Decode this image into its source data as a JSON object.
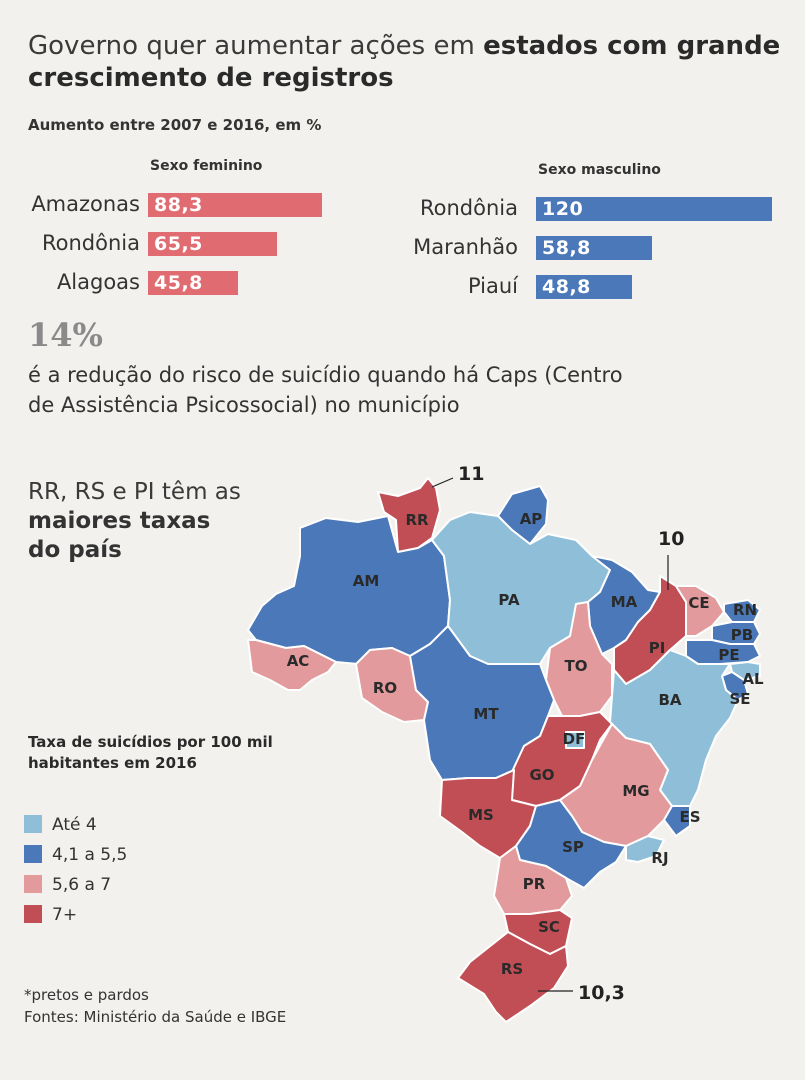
{
  "headline": {
    "part1": "Governo quer aumentar ações em ",
    "bold": "estados com grande crescimento de registros"
  },
  "subtitle": "Aumento entre 2007 e 2016, em %",
  "bar_section": {
    "female_header": "Sexo feminino",
    "male_header": "Sexo masculino"
  },
  "stat": {
    "value": "14%",
    "text": "é a redução do risco de suicídio quando há Caps (Centro de Assistência Psicossocial) no município"
  },
  "map_title": {
    "line1": "RR, RS e PI têm as",
    "line2": "maiores taxas",
    "line3": "do país"
  },
  "legend": {
    "title_line1": "Taxa de suicídios por 100 mil",
    "title_line2": "habitantes em 2016",
    "items": [
      {
        "label": "Até 4",
        "color": "#8fbfd8"
      },
      {
        "label": "4,1 a 5,5",
        "color": "#4a78b8"
      },
      {
        "label": "5,6 a 7",
        "color": "#e29a9c"
      },
      {
        "label": "7+",
        "color": "#c24e55"
      }
    ]
  },
  "callouts": {
    "rr": "11",
    "pi": "10",
    "rs": "10,3"
  },
  "footnote": "*pretos e pardos",
  "sources": "Fontes: Ministério da Saúde e IBGE",
  "colors": {
    "female_bar": "#e06b70",
    "male_bar": "#4a78b8"
  },
  "chart_data": [
    {
      "type": "bar",
      "orientation": "horizontal",
      "title": "Aumento entre 2007 e 2016, em %",
      "series": [
        {
          "name": "Sexo feminino",
          "categories": [
            "Amazonas",
            "Rondônia",
            "Alagoas"
          ],
          "values": [
            88.3,
            65.5,
            45.8
          ],
          "labels": [
            "88,3",
            "65,5",
            "45,8"
          ]
        },
        {
          "name": "Sexo masculino",
          "categories": [
            "Rondônia",
            "Maranhão",
            "Piauí"
          ],
          "values": [
            120,
            58.8,
            48.8
          ],
          "labels": [
            "120",
            "58,8",
            "48,8"
          ]
        }
      ],
      "xlim": [
        0,
        120
      ]
    },
    {
      "type": "choropleth",
      "title": "Taxa de suicídios por 100 mil habitantes em 2016",
      "classes": [
        "Até 4",
        "4,1 a 5,5",
        "5,6 a 7",
        "7+"
      ],
      "states": [
        {
          "code": "RR",
          "class": "7+"
        },
        {
          "code": "AP",
          "class": "4,1 a 5,5"
        },
        {
          "code": "AM",
          "class": "4,1 a 5,5"
        },
        {
          "code": "PA",
          "class": "Até 4"
        },
        {
          "code": "MA",
          "class": "4,1 a 5,5"
        },
        {
          "code": "PI",
          "class": "7+"
        },
        {
          "code": "CE",
          "class": "5,6 a 7"
        },
        {
          "code": "RN",
          "class": "4,1 a 5,5"
        },
        {
          "code": "PB",
          "class": "4,1 a 5,5"
        },
        {
          "code": "PE",
          "class": "4,1 a 5,5"
        },
        {
          "code": "AL",
          "class": "Até 4"
        },
        {
          "code": "SE",
          "class": "4,1 a 5,5"
        },
        {
          "code": "AC",
          "class": "5,6 a 7"
        },
        {
          "code": "RO",
          "class": "5,6 a 7"
        },
        {
          "code": "TO",
          "class": "5,6 a 7"
        },
        {
          "code": "BA",
          "class": "Até 4"
        },
        {
          "code": "MT",
          "class": "4,1 a 5,5"
        },
        {
          "code": "DF",
          "class": "Até 4"
        },
        {
          "code": "GO",
          "class": "7+"
        },
        {
          "code": "MG",
          "class": "5,6 a 7"
        },
        {
          "code": "ES",
          "class": "4,1 a 5,5"
        },
        {
          "code": "MS",
          "class": "7+"
        },
        {
          "code": "SP",
          "class": "4,1 a 5,5"
        },
        {
          "code": "RJ",
          "class": "Até 4"
        },
        {
          "code": "PR",
          "class": "5,6 a 7"
        },
        {
          "code": "SC",
          "class": "7+"
        },
        {
          "code": "RS",
          "class": "7+"
        }
      ],
      "highlights": [
        {
          "code": "RR",
          "value": "11"
        },
        {
          "code": "PI",
          "value": "10"
        },
        {
          "code": "RS",
          "value": "10,3"
        }
      ]
    }
  ]
}
